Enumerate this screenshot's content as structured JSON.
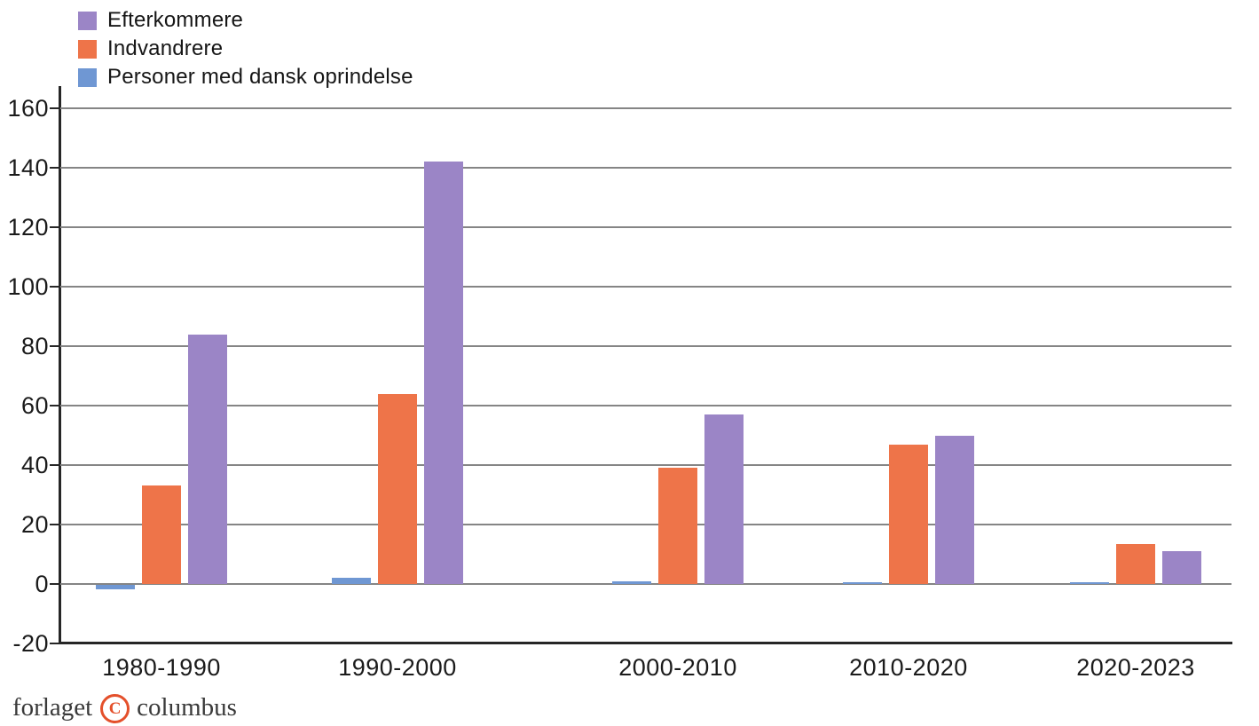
{
  "chart_data": {
    "type": "bar",
    "title": "",
    "xlabel": "",
    "ylabel": "",
    "categories": [
      "1980-1990",
      "1990-2000",
      "2000-2010",
      "2010-2020",
      "2020-2023"
    ],
    "series": [
      {
        "name": "Efterkommere",
        "color": "#9b85c6",
        "values": [
          84,
          142,
          57,
          50,
          11
        ]
      },
      {
        "name": "Indvandrere",
        "color": "#ee7449",
        "values": [
          33,
          64,
          39,
          47,
          13.5
        ]
      },
      {
        "name": "Personer med dansk oprindelse",
        "color": "#6f97d3",
        "values": [
          -1.5,
          2,
          1,
          0.5,
          0.5
        ]
      }
    ],
    "bar_draw_order": [
      2,
      1,
      0
    ],
    "ylim": [
      -20,
      160
    ],
    "yticks": [
      160,
      140,
      120,
      100,
      80,
      60,
      40,
      20,
      0,
      -20
    ],
    "grid": true,
    "legend_position": "top-left",
    "gridline_color": "#858585",
    "axis_color": "#262626"
  },
  "footer": {
    "brand_left": "forlaget",
    "brand_right": "columbus",
    "logo_letter": "C",
    "logo_color": "#e4502b"
  }
}
